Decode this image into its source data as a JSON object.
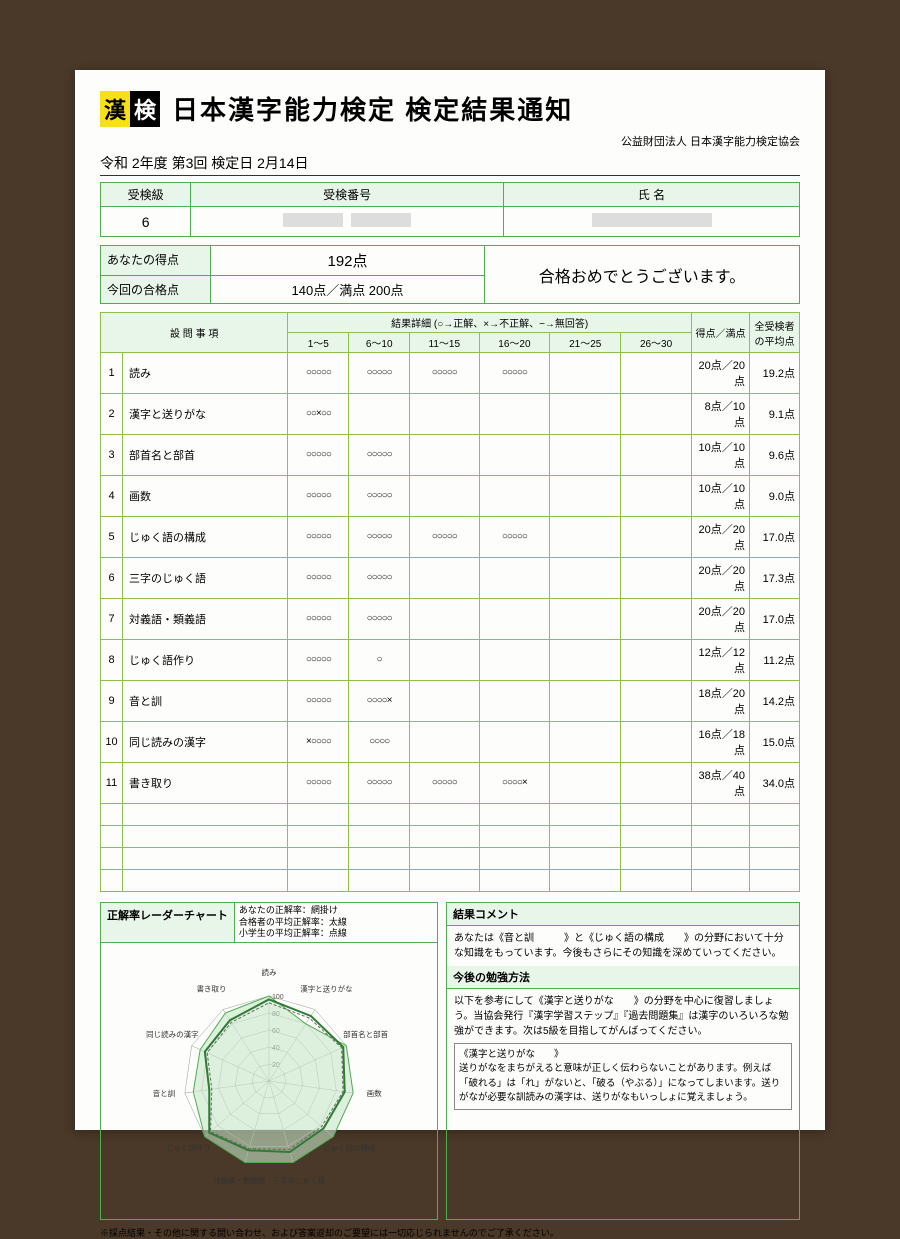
{
  "logo": {
    "char1": "漢",
    "char2": "検"
  },
  "title": "日本漢字能力検定 検定結果通知",
  "organization": "公益財団法人 日本漢字能力検定協会",
  "date_line": "令和 2年度 第3回 検定日 2月14日",
  "info_headers": {
    "level": "受検級",
    "exam_no": "受検番号",
    "name": "氏 名"
  },
  "info_values": {
    "level": "6"
  },
  "score": {
    "your_label": "あなたの得点",
    "your_value": "192点",
    "pass_label": "今回の合格点",
    "pass_value": "140点／満点 200点",
    "message": "合格おめでとうございます。"
  },
  "detail_headers": {
    "category": "設 問 事 項",
    "result_detail": "結果詳細 (○→正解、×→不正解、−→無回答)",
    "ranges": [
      "1〜5",
      "6〜10",
      "11〜15",
      "16〜20",
      "21〜25",
      "26〜30"
    ],
    "score": "得点／満点",
    "avg": "全受検者の平均点"
  },
  "rows": [
    {
      "n": "1",
      "name": "読み",
      "marks": [
        "○○○○○",
        "○○○○○",
        "○○○○○",
        "○○○○○",
        "",
        ""
      ],
      "score": "20点／20点",
      "avg": "19.2点"
    },
    {
      "n": "2",
      "name": "漢字と送りがな",
      "marks": [
        "○○×○○",
        "",
        "",
        "",
        "",
        ""
      ],
      "score": "8点／10点",
      "avg": "9.1点"
    },
    {
      "n": "3",
      "name": "部首名と部首",
      "marks": [
        "○○○○○",
        "○○○○○",
        "",
        "",
        "",
        ""
      ],
      "score": "10点／10点",
      "avg": "9.6点"
    },
    {
      "n": "4",
      "name": "画数",
      "marks": [
        "○○○○○",
        "○○○○○",
        "",
        "",
        "",
        ""
      ],
      "score": "10点／10点",
      "avg": "9.0点"
    },
    {
      "n": "5",
      "name": "じゅく語の構成",
      "marks": [
        "○○○○○",
        "○○○○○",
        "○○○○○",
        "○○○○○",
        "",
        ""
      ],
      "score": "20点／20点",
      "avg": "17.0点"
    },
    {
      "n": "6",
      "name": "三字のじゅく語",
      "marks": [
        "○○○○○",
        "○○○○○",
        "",
        "",
        "",
        ""
      ],
      "score": "20点／20点",
      "avg": "17.3点"
    },
    {
      "n": "7",
      "name": "対義語・類義語",
      "marks": [
        "○○○○○",
        "○○○○○",
        "",
        "",
        "",
        ""
      ],
      "score": "20点／20点",
      "avg": "17.0点"
    },
    {
      "n": "8",
      "name": "じゅく語作り",
      "marks": [
        "○○○○○",
        "○",
        "",
        "",
        "",
        ""
      ],
      "score": "12点／12点",
      "avg": "11.2点"
    },
    {
      "n": "9",
      "name": "音と訓",
      "marks": [
        "○○○○○",
        "○○○○×",
        "",
        "",
        "",
        ""
      ],
      "score": "18点／20点",
      "avg": "14.2点"
    },
    {
      "n": "10",
      "name": "同じ読みの漢字",
      "marks": [
        "×○○○○",
        "○○○○",
        "",
        "",
        "",
        ""
      ],
      "score": "16点／18点",
      "avg": "15.0点"
    },
    {
      "n": "11",
      "name": "書き取り",
      "marks": [
        "○○○○○",
        "○○○○○",
        "○○○○○",
        "○○○○×",
        "",
        ""
      ],
      "score": "38点／40点",
      "avg": "34.0点"
    }
  ],
  "radar": {
    "title": "正解率レーダーチャート",
    "legend1": "あなたの正解率：網掛け",
    "legend2": "合格者の平均正解率：太線",
    "legend3": "小学生の平均正解率：点線",
    "labels": [
      "読み",
      "漢字と送りがな",
      "部首名と部首",
      "画数",
      "じゅく語の構成",
      "三字のじゅく語",
      "対義語・類義語",
      "じゅく語作り",
      "音と訓",
      "同じ読みの漢字",
      "書き取り"
    ],
    "rings": [
      20,
      40,
      60,
      80,
      100
    ],
    "your": [
      100,
      80,
      100,
      100,
      100,
      100,
      100,
      100,
      90,
      89,
      95
    ],
    "passer": [
      96,
      91,
      96,
      90,
      85,
      87,
      85,
      93,
      71,
      83,
      85
    ],
    "student": [
      92,
      88,
      94,
      88,
      82,
      84,
      83,
      91,
      68,
      80,
      82
    ],
    "colors": {
      "grid": "#999",
      "your_fill": "#c8e6c9",
      "your_stroke": "#4caf50",
      "passer": "#2e7d32",
      "student": "#666"
    }
  },
  "comment": {
    "title1": "結果コメント",
    "body1": "あなたは《音と訓　　　》と《じゅく語の構成　　》の分野において十分な知識をもっています。今後もさらにその知識を深めていってください。",
    "title2": "今後の勉強方法",
    "body2": "以下を参考にして《漢字と送りがな　　》の分野を中心に復習しましょう。当協会発行『漢字学習ステップ』『過去問題集』は漢字のいろいろな勉強ができます。次は5級を目指してがんばってください。",
    "sub_title": "《漢字と送りがな　　》",
    "sub_body": "送りがなをまちがえると意味が正しく伝わらないことがあります。例えば「破れる」は「れ」がないと、「破る（やぶる）」になってしまいます。送りがなが必要な訓読みの漢字は、送りがなもいっしょに覚えましょう。"
  },
  "footnote": "※採点結果・その他に関する問い合わせ、および答案返却のご要望には一切応じられませんのでご了承ください。"
}
